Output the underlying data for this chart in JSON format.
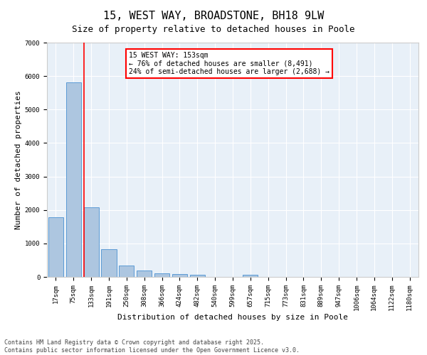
{
  "title": "15, WEST WAY, BROADSTONE, BH18 9LW",
  "subtitle": "Size of property relative to detached houses in Poole",
  "xlabel": "Distribution of detached houses by size in Poole",
  "ylabel": "Number of detached properties",
  "categories": [
    "17sqm",
    "75sqm",
    "133sqm",
    "191sqm",
    "250sqm",
    "308sqm",
    "366sqm",
    "424sqm",
    "482sqm",
    "540sqm",
    "599sqm",
    "657sqm",
    "715sqm",
    "773sqm",
    "831sqm",
    "889sqm",
    "947sqm",
    "1006sqm",
    "1064sqm",
    "1122sqm",
    "1180sqm"
  ],
  "values": [
    1780,
    5820,
    2080,
    820,
    340,
    185,
    110,
    90,
    55,
    0,
    0,
    55,
    0,
    0,
    0,
    0,
    0,
    0,
    0,
    0,
    0
  ],
  "bar_color": "#adc6e0",
  "bar_edge_color": "#5b9bd5",
  "vline_x_index": 2,
  "vline_color": "red",
  "annotation_text": "15 WEST WAY: 153sqm\n← 76% of detached houses are smaller (8,491)\n24% of semi-detached houses are larger (2,688) →",
  "annotation_box_color": "red",
  "annotation_text_color": "black",
  "ylim": [
    0,
    7000
  ],
  "yticks": [
    0,
    1000,
    2000,
    3000,
    4000,
    5000,
    6000,
    7000
  ],
  "background_color": "#e8f0f8",
  "grid_color": "#ffffff",
  "footer_line1": "Contains HM Land Registry data © Crown copyright and database right 2025.",
  "footer_line2": "Contains public sector information licensed under the Open Government Licence v3.0.",
  "title_fontsize": 11,
  "label_fontsize": 8,
  "tick_fontsize": 6.5,
  "footer_fontsize": 6
}
